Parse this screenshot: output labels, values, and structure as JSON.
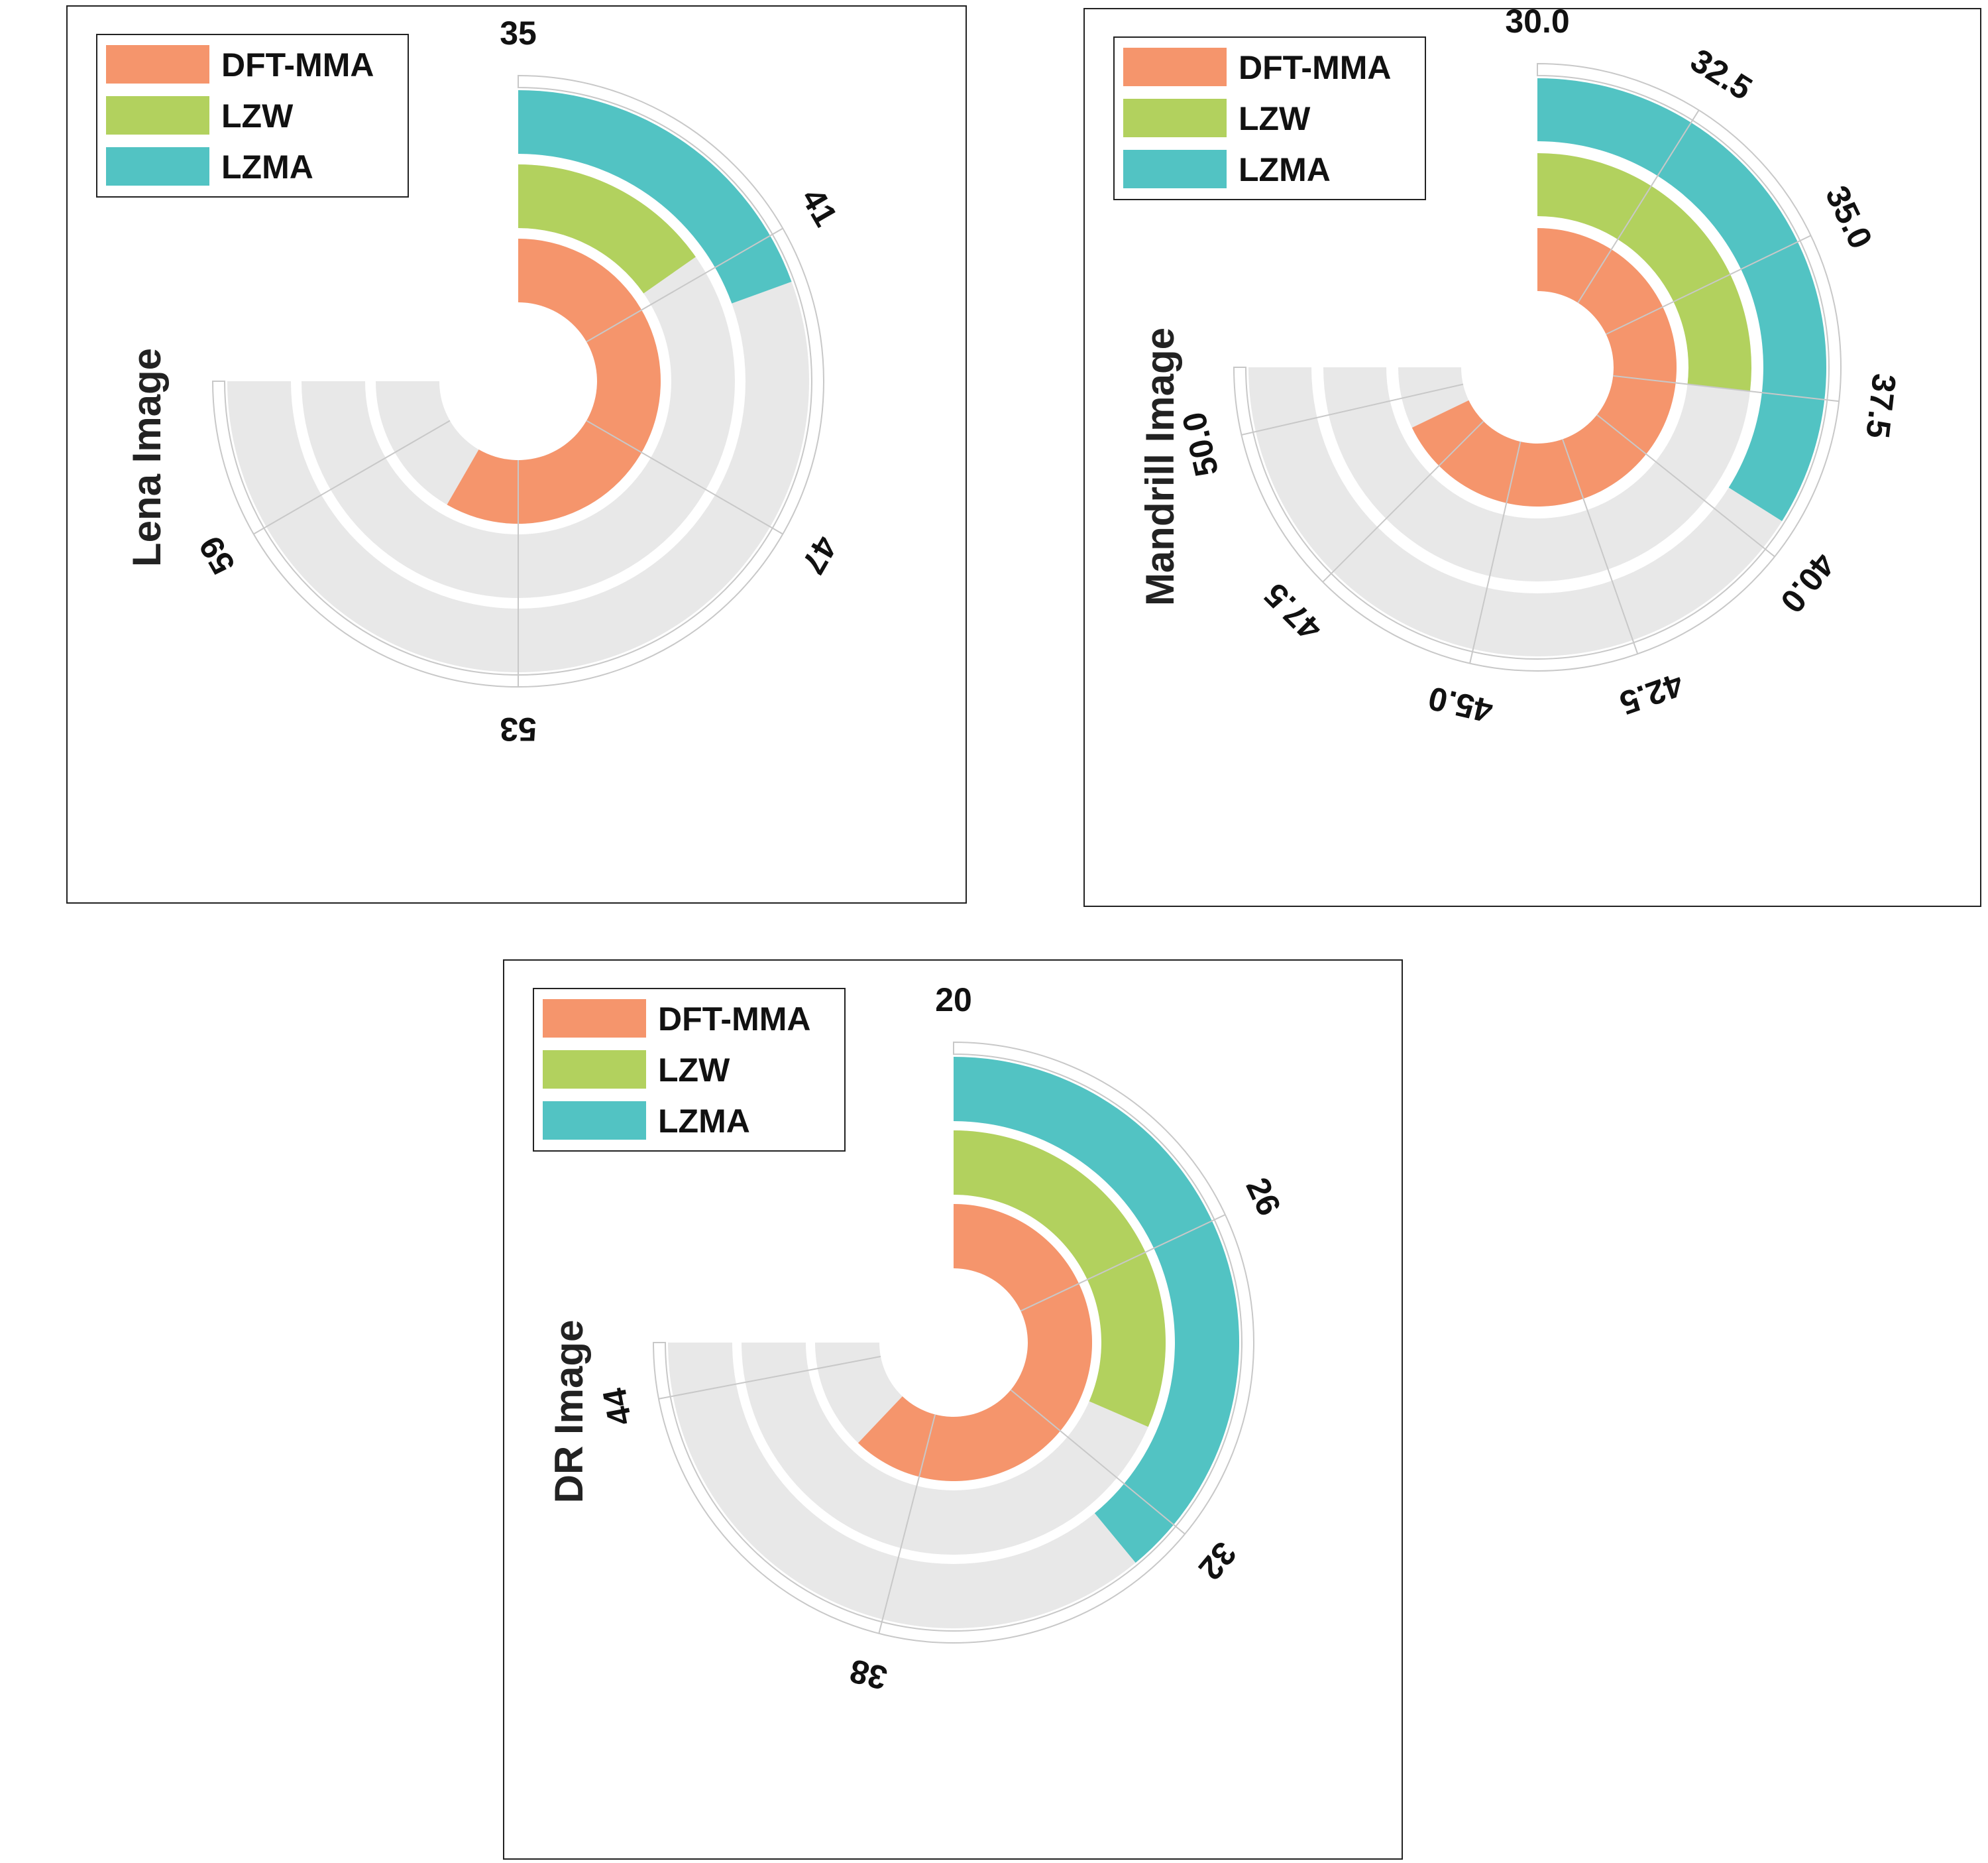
{
  "colors": {
    "DFT-MMA": "#f5956c",
    "LZW": "#b2d15e",
    "LZMA": "#52c3c3",
    "track": "#e8e8e8",
    "grid": "#c8c8c8"
  },
  "chart_data": [
    {
      "type": "radial-bar",
      "ylabel": "Lena Image",
      "legend": [
        "DFT-MMA",
        "LZW",
        "LZMA"
      ],
      "legend_position": "top-left",
      "angular_range": [
        35,
        62
      ],
      "ticks": [
        "35",
        "41",
        "47",
        "53",
        "59"
      ],
      "series": [
        {
          "name": "DFT-MMA",
          "value": 56
        },
        {
          "name": "LZW",
          "value": 40.5
        },
        {
          "name": "LZMA",
          "value": 42
        }
      ]
    },
    {
      "type": "radial-bar",
      "ylabel": "Mandrill Image",
      "legend": [
        "DFT-MMA",
        "LZW",
        "LZMA"
      ],
      "legend_position": "top-left",
      "angular_range": [
        30,
        51
      ],
      "ticks": [
        "30.0",
        "32.5",
        "35.0",
        "37.5",
        "40.0",
        "42.5",
        "45.0",
        "47.5",
        "50.0"
      ],
      "series": [
        {
          "name": "DFT-MMA",
          "value": 49
        },
        {
          "name": "LZW",
          "value": 37.5
        },
        {
          "name": "LZMA",
          "value": 39.5
        }
      ]
    },
    {
      "type": "radial-bar",
      "ylabel": "DR Image",
      "legend": [
        "DFT-MMA",
        "LZW",
        "LZMA"
      ],
      "legend_position": "top-left",
      "angular_range": [
        20,
        45
      ],
      "ticks": [
        "20",
        "26",
        "32",
        "38",
        "44"
      ],
      "series": [
        {
          "name": "DFT-MMA",
          "value": 40.7
        },
        {
          "name": "LZW",
          "value": 30.5
        },
        {
          "name": "LZMA",
          "value": 33
        }
      ]
    }
  ]
}
